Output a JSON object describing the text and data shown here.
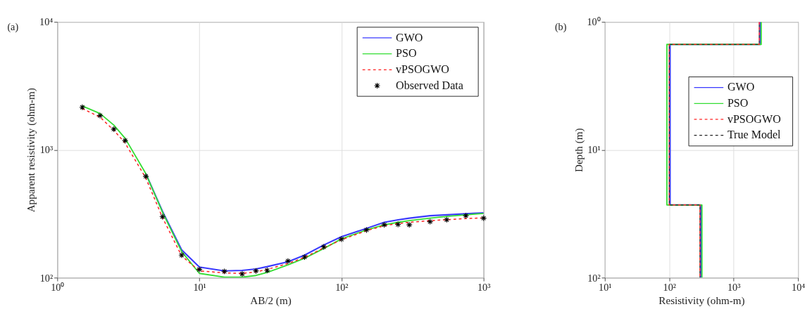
{
  "chart_data": [
    {
      "type": "line",
      "title": "(a)",
      "xlabel": "AB/2 (m)",
      "ylabel": "Apparent resistivity (ohm-m)",
      "log": "xy",
      "grid": true,
      "legend": "top right",
      "xlim": [
        1,
        1000
      ],
      "ylim": [
        100,
        10000
      ],
      "xticks": [
        {
          "value": 1,
          "label": "10⁰"
        },
        {
          "value": 10,
          "label": "10¹"
        },
        {
          "value": 100,
          "label": "10²"
        },
        {
          "value": 1000,
          "label": "10³"
        }
      ],
      "yticks": [
        {
          "value": 100,
          "label": "10²"
        },
        {
          "value": 1000,
          "label": "10³"
        },
        {
          "value": 10000,
          "label": "10⁴"
        }
      ],
      "x": [
        1.5,
        2,
        2.5,
        3,
        4.2,
        5.5,
        7.5,
        10,
        15,
        20,
        25,
        30,
        42,
        55,
        75,
        100,
        150,
        200,
        250,
        300,
        420,
        550,
        750,
        1000
      ],
      "series": [
        {
          "name": "GWO",
          "color": "#3a3aff",
          "line_style": "solid",
          "values": [
            null,
            null,
            null,
            null,
            650,
            330,
            165,
            121,
            113,
            114,
            117,
            122,
            133,
            150,
            180,
            209,
            243,
            271,
            283,
            292,
            305,
            310,
            316,
            321
          ]
        },
        {
          "name": "PSO",
          "color": "#33dd33",
          "line_style": "solid",
          "values": [
            2200,
            1920,
            1560,
            1230,
            650,
            325,
            160,
            108,
            101,
            101,
            104,
            110,
            126,
            142,
            169,
            201,
            236,
            259,
            271,
            279,
            292,
            301,
            310,
            318
          ]
        },
        {
          "name": "vPSOGWO",
          "color": "#ff2222",
          "line_style": "dashed",
          "values": [
            2100,
            1800,
            1420,
            1130,
            600,
            295,
            148,
            113,
            109,
            108,
            111,
            116,
            129,
            144,
            171,
            198,
            233,
            255,
            265,
            271,
            279,
            284,
            290,
            293
          ]
        },
        {
          "name": "Observed Data",
          "type": "scatter",
          "marker": "cross",
          "color": "#000000",
          "values": [
            2150,
            1850,
            1450,
            1180,
            620,
            300,
            150,
            116,
            112,
            107,
            113,
            114,
            135,
            145,
            174,
            200,
            236,
            259,
            261,
            259,
            274,
            284,
            305,
            292
          ]
        }
      ]
    },
    {
      "type": "line",
      "title": "(b)",
      "xlabel": "Resistivity (ohm-m)",
      "ylabel": "Depth (m)",
      "log": "xy",
      "grid": true,
      "legend": "right",
      "xlim": [
        10,
        10000
      ],
      "ylim": [
        100,
        1
      ],
      "xticks": [
        {
          "value": 10,
          "label": "10¹"
        },
        {
          "value": 100,
          "label": "10²"
        },
        {
          "value": 1000,
          "label": "10³"
        },
        {
          "value": 10000,
          "label": "10⁴"
        }
      ],
      "yticks": [
        {
          "value": 1,
          "label": "10⁰"
        },
        {
          "value": 10,
          "label": "10¹"
        },
        {
          "value": 100,
          "label": "10²"
        }
      ],
      "series": [
        {
          "name": "GWO",
          "color": "#3a3aff",
          "line_style": "solid",
          "x": [
            2600,
            2600,
            103,
            103,
            310,
            310
          ],
          "values": [
            1,
            1.5,
            1.5,
            27,
            27,
            100
          ]
        },
        {
          "name": "PSO",
          "color": "#33dd33",
          "line_style": "solid",
          "x": [
            2680,
            2680,
            92,
            92,
            322,
            322
          ],
          "values": [
            1,
            1.5,
            1.5,
            27,
            27,
            100
          ]
        },
        {
          "name": "vPSOGWO",
          "color": "#ff2222",
          "line_style": "dashed",
          "x": [
            2500,
            2500,
            100,
            100,
            300,
            300
          ],
          "values": [
            1,
            1.5,
            1.5,
            27,
            27,
            100
          ]
        },
        {
          "name": "True Model",
          "color": "#222222",
          "line_style": "dashed",
          "x": [
            2500,
            2500,
            100,
            100,
            300,
            300
          ],
          "values": [
            1,
            1.5,
            1.5,
            27,
            27,
            100
          ]
        }
      ]
    }
  ]
}
